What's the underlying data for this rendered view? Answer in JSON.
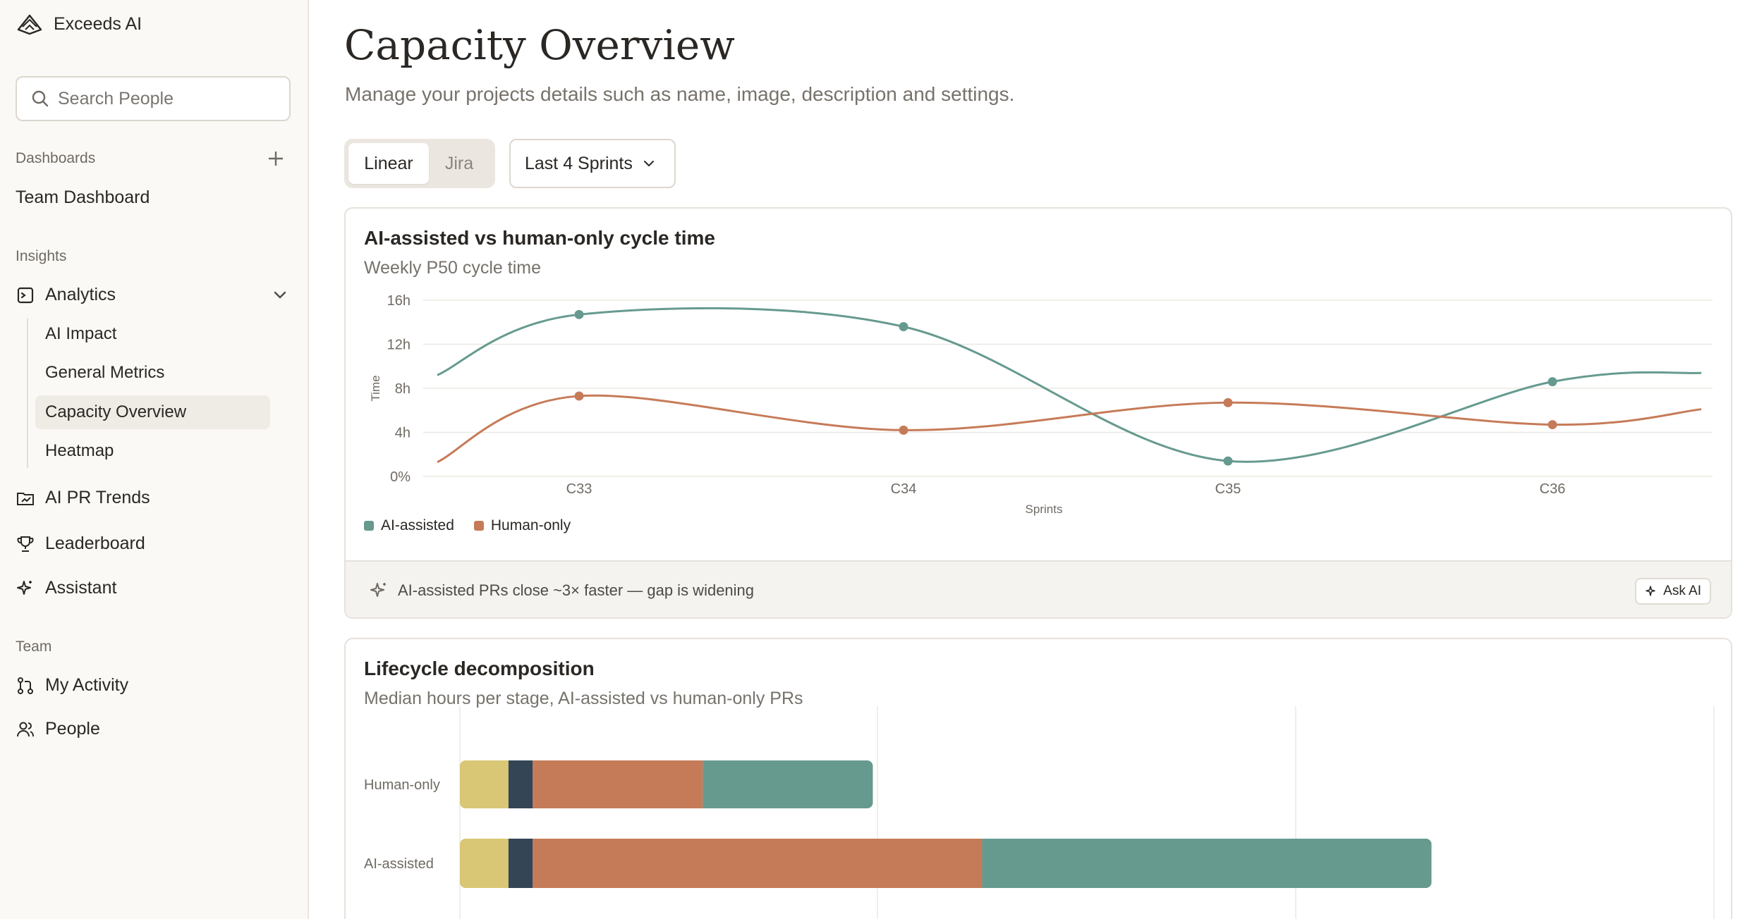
{
  "brand": {
    "name": "Exceeds AI",
    "logo_icon": "mountain-logo-icon"
  },
  "search": {
    "placeholder": "Search People"
  },
  "sidebar": {
    "dashboards_label": "Dashboards",
    "team_dashboard": "Team Dashboard",
    "insights_label": "Insights",
    "analytics": "Analytics",
    "analytics_sub": [
      "AI Impact",
      "General Metrics",
      "Capacity Overview",
      "Heatmap"
    ],
    "active_sub": "Capacity Overview",
    "ai_pr_trends": "AI PR Trends",
    "leaderboard": "Leaderboard",
    "assistant": "Assistant",
    "team_label": "Team",
    "my_activity": "My Activity",
    "people": "People"
  },
  "header": {
    "title": "Capacity Overview",
    "subtitle": "Manage your projects details such as name, image, description and settings."
  },
  "controls": {
    "source_tabs": [
      "Linear",
      "Jira"
    ],
    "active_source": "Linear",
    "range": "Last 4 Sprints"
  },
  "colors": {
    "ai": "#669a8f",
    "human": "#c67b58",
    "stage1": "#d9c775",
    "stage2": "#344556"
  },
  "cycle_card": {
    "title": "AI-assisted vs human-only cycle time",
    "subtitle": "Weekly P50 cycle time",
    "insight": "AI-assisted PRs close ~3× faster — gap is widening",
    "ask_label": "Ask AI"
  },
  "lifecycle_card": {
    "title": "Lifecycle decomposition",
    "subtitle": "Median hours per stage, AI-assisted vs human-only PRs"
  },
  "chart_data": [
    {
      "type": "line",
      "title": "AI-assisted vs human-only cycle time",
      "subtitle": "Weekly P50 cycle time",
      "xlabel": "Sprints",
      "ylabel": "Time",
      "categories": [
        "C33",
        "C34",
        "C35",
        "C36"
      ],
      "y_ticks": [
        "0%",
        "4h",
        "8h",
        "12h",
        "16h"
      ],
      "ylim": [
        0,
        16
      ],
      "grid": true,
      "legend": "bottom-left",
      "series": [
        {
          "name": "AI-assisted",
          "values": [
            14.7,
            13.6,
            1.4,
            8.6
          ]
        },
        {
          "name": "Human-only",
          "values": [
            7.3,
            4.2,
            6.7,
            4.7
          ]
        }
      ]
    },
    {
      "type": "bar",
      "orientation": "horizontal",
      "stacked": true,
      "title": "Lifecycle decomposition",
      "subtitle": "Median hours per stage, AI-assisted vs human-only PRs",
      "categories": [
        "Human-only",
        "AI-assisted"
      ],
      "series": [
        {
          "values": [
            1.2,
            1.2
          ]
        },
        {
          "values": [
            0.6,
            0.6
          ]
        },
        {
          "values": [
            4.2,
            11.1
          ]
        },
        {
          "values": [
            4.2,
            11.1
          ]
        }
      ]
    }
  ]
}
